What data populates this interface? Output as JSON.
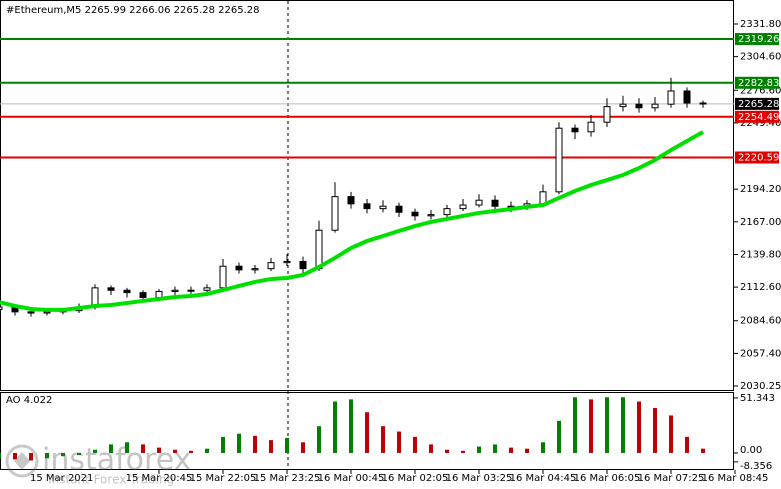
{
  "chart_data": {
    "type": "candlestick",
    "title": "#Ethereum,M5  2265.99 2266.06 2265.28 2265.28",
    "categories": [
      "15 Mar 2021",
      null,
      null,
      null,
      null,
      null,
      null,
      null,
      null,
      null,
      "15 Mar 20:45",
      null,
      null,
      null,
      "15 Mar 22:05",
      null,
      null,
      null,
      "15 Mar 23:25",
      null,
      null,
      null,
      "16 Mar 00:45",
      null,
      null,
      null,
      "16 Mar 02:05",
      null,
      null,
      null,
      "16 Mar 03:25",
      null,
      null,
      null,
      "16 Mar 04:45",
      null,
      null,
      null,
      "16 Mar 06:05",
      null,
      null,
      null,
      "16 Mar 07:25",
      null,
      null,
      null,
      "16 Mar 08:45"
    ],
    "open": [
      2094,
      2096,
      2092,
      2091,
      2092,
      2093,
      2096,
      2112,
      2110,
      2108,
      2104,
      2109,
      2110,
      2110,
      2112,
      2130,
      2127,
      2128,
      2133,
      2134,
      2128,
      2160,
      2188,
      2182,
      2178,
      2180,
      2175,
      2172,
      2173,
      2178,
      2181,
      2185,
      2180,
      2179,
      2182,
      2192,
      2245,
      2242,
      2250,
      2263,
      2265,
      2262,
      2265,
      2276,
      2266,
      null,
      null
    ],
    "high": [
      2098,
      2097,
      2094,
      2094,
      2095,
      2099,
      2115,
      2114,
      2112,
      2110,
      2111,
      2113,
      2113,
      2115,
      2136,
      2133,
      2131,
      2137,
      2140,
      2138,
      2168,
      2200,
      2192,
      2186,
      2185,
      2183,
      2178,
      2177,
      2181,
      2186,
      2190,
      2189,
      2184,
      2185,
      2198,
      2250,
      2248,
      2256,
      2270,
      2272,
      2270,
      2271,
      2287,
      2279,
      2268,
      null,
      null
    ],
    "low": [
      2090,
      2089,
      2088,
      2089,
      2090,
      2091,
      2094,
      2106,
      2104,
      2101,
      2102,
      2106,
      2107,
      2108,
      2110,
      2124,
      2124,
      2126,
      2130,
      2124,
      2126,
      2158,
      2178,
      2174,
      2175,
      2171,
      2168,
      2169,
      2170,
      2176,
      2179,
      2177,
      2175,
      2177,
      2180,
      2190,
      2236,
      2238,
      2246,
      2259,
      2258,
      2259,
      2262,
      2262,
      2262,
      null,
      null
    ],
    "close": [
      2096,
      2092,
      2091,
      2092,
      2093,
      2096,
      2112,
      2110,
      2108,
      2104,
      2109,
      2110,
      2110,
      2112,
      2130,
      2127,
      2128,
      2133,
      2134,
      2128,
      2160,
      2188,
      2182,
      2178,
      2180,
      2175,
      2172,
      2173,
      2178,
      2181,
      2185,
      2180,
      2179,
      2182,
      2192,
      2245,
      2242,
      2250,
      2263,
      2265,
      2262,
      2265,
      2276,
      2266,
      2265.28,
      null,
      null
    ],
    "moving_average": {
      "color": "#00e000",
      "values": [
        2100.2,
        2096.9,
        2094.4,
        2093.6,
        2093.6,
        2095.2,
        2096.9,
        2097.7,
        2099.4,
        2101.1,
        2102.7,
        2104.4,
        2105.2,
        2106.9,
        2110.2,
        2113.6,
        2116.9,
        2119.4,
        2120.2,
        2122.7,
        2129.4,
        2136.9,
        2145.2,
        2151.0,
        2155.2,
        2159.4,
        2163.5,
        2166.9,
        2169.4,
        2171.9,
        2174.4,
        2176.0,
        2177.7,
        2179.4,
        2181.0,
        2186.9,
        2192.7,
        2197.7,
        2201.8,
        2206.0,
        2211.8,
        2218.5,
        2226.8,
        2234.3,
        2241.8,
        null,
        null
      ]
    },
    "ylim": [
      2026.9,
      2351.8
    ],
    "yticks": [
      {
        "value": 2331.8,
        "label": "2331.80"
      },
      {
        "value": 2304.6,
        "label": "2304.60"
      },
      {
        "value": 2276.6,
        "label": "2276.60"
      },
      {
        "value": 2249.4,
        "label": "2249.40"
      },
      {
        "value": 2194.2,
        "label": "2194.20"
      },
      {
        "value": 2167.0,
        "label": "2167.00"
      },
      {
        "value": 2139.8,
        "label": "2139.80"
      },
      {
        "value": 2112.6,
        "label": "2112.60"
      },
      {
        "value": 2084.6,
        "label": "2084.60"
      },
      {
        "value": 2057.4,
        "label": "2057.40"
      },
      {
        "value": 2030.25,
        "label": "2030.25"
      }
    ],
    "levels": [
      {
        "value": 2319.26,
        "label": "2319.26",
        "color": "#008000"
      },
      {
        "value": 2282.83,
        "label": "2282.83",
        "color": "#008000"
      },
      {
        "value": 2254.49,
        "label": "2254.49",
        "color": "#e00000"
      },
      {
        "value": 2220.59,
        "label": "2220.59",
        "color": "#e00000"
      }
    ],
    "current_price": {
      "value": 2265.28,
      "label": "2265.28"
    },
    "oscillator": {
      "title": "AO 4.022",
      "up_color": "#008000",
      "down_color": "#c00000",
      "values": [
        -5,
        -6,
        -7,
        -5,
        -3,
        -2,
        3,
        8,
        10,
        8,
        5,
        3,
        2,
        4,
        15,
        18,
        16,
        12,
        14,
        10,
        25,
        48,
        50,
        38,
        25,
        20,
        15,
        8,
        3,
        2,
        6,
        8,
        5,
        4,
        10,
        30,
        52,
        50,
        52,
        52,
        48,
        42,
        35,
        15,
        4.022,
        null,
        null
      ],
      "ylim": [
        -15.9,
        56.9
      ],
      "yticks": [
        {
          "value": 51.343,
          "label": "51.343"
        },
        {
          "value": 0,
          "label": "0.00"
        },
        {
          "value": -8.356,
          "label": "-8.356"
        }
      ]
    },
    "watermark": {
      "brand": "instaforex",
      "tagline": "Instant Forex Trading"
    }
  }
}
